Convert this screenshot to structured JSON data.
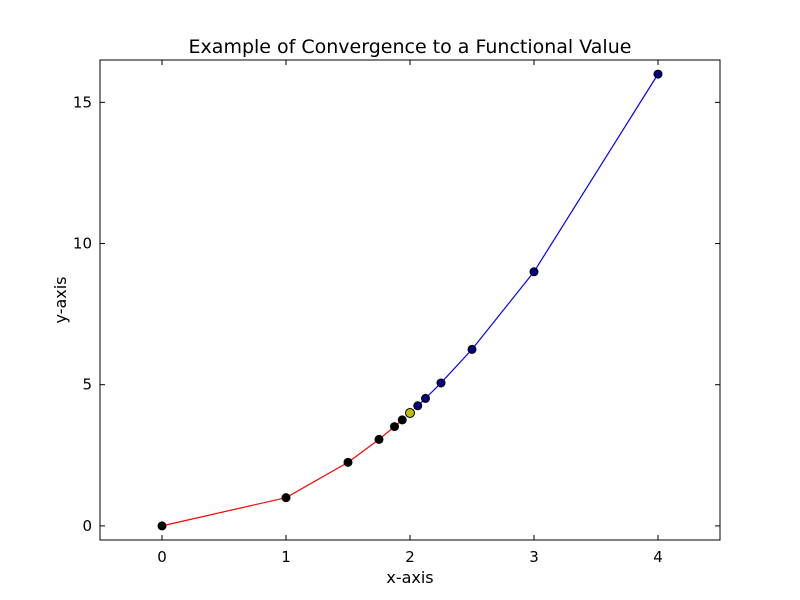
{
  "chart_data": {
    "type": "line",
    "title": "Example of Convergence to a Functional Value",
    "xlabel": "x-axis",
    "ylabel": "y-axis",
    "xlim": [
      -0.5,
      4.5
    ],
    "ylim": [
      -0.5,
      16.5
    ],
    "xticks": [
      0,
      1,
      2,
      3,
      4
    ],
    "yticks": [
      0,
      5,
      10,
      15
    ],
    "grid": false,
    "series": [
      {
        "color": "#ff0000",
        "marker_color": "#000000",
        "points": [
          {
            "x": 0,
            "y": 0
          },
          {
            "x": 1,
            "y": 1
          },
          {
            "x": 1.5,
            "y": 2.25
          },
          {
            "x": 1.75,
            "y": 3.0625
          },
          {
            "x": 1.875,
            "y": 3.515625
          },
          {
            "x": 1.9375,
            "y": 3.75390625
          }
        ]
      },
      {
        "color": "#0000ff",
        "marker_color": "#000080",
        "points": [
          {
            "x": 4,
            "y": 16
          },
          {
            "x": 3,
            "y": 9
          },
          {
            "x": 2.5,
            "y": 6.25
          },
          {
            "x": 2.25,
            "y": 5.0625
          },
          {
            "x": 2.125,
            "y": 4.515625
          },
          {
            "x": 2.0625,
            "y": 4.25390625
          }
        ]
      }
    ],
    "highlight": {
      "x": 2,
      "y": 4,
      "color": "#bfbf00"
    }
  }
}
